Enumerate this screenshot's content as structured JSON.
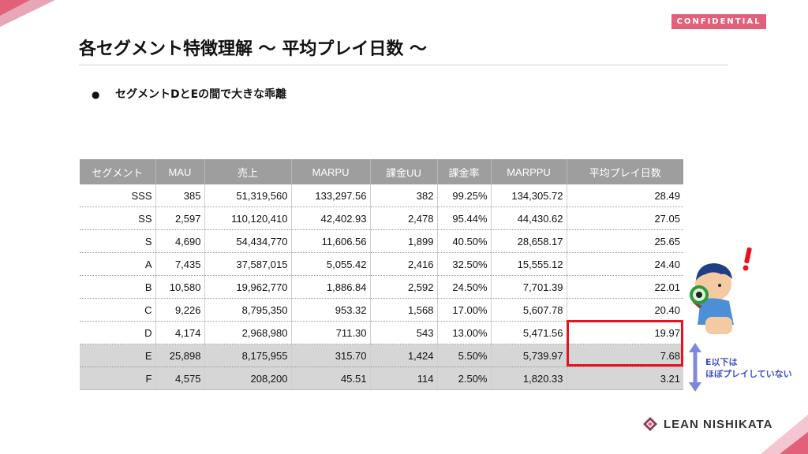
{
  "badge": "CONFIDENTIAL",
  "title": "各セグメント特徴理解 〜 平均プレイ日数 〜",
  "bullet": {
    "marker": "●",
    "text": "セグメントDとEの間で大きな乖離"
  },
  "table": {
    "headers": [
      "セグメント",
      "MAU",
      "売上",
      "MARPU",
      "課金UU",
      "課金率",
      "MARPPU",
      "平均プレイ日数"
    ],
    "rows": [
      [
        "SSS",
        "385",
        "51,319,560",
        "133,297.56",
        "382",
        "99.25%",
        "134,305.72",
        "28.49"
      ],
      [
        "SS",
        "2,597",
        "110,120,410",
        "42,402.93",
        "2,478",
        "95.44%",
        "44,430.62",
        "27.05"
      ],
      [
        "S",
        "4,690",
        "54,434,770",
        "11,606.56",
        "1,899",
        "40.50%",
        "28,658.17",
        "25.65"
      ],
      [
        "A",
        "7,435",
        "37,587,015",
        "5,055.42",
        "2,416",
        "32.50%",
        "15,555.12",
        "24.40"
      ],
      [
        "B",
        "10,580",
        "19,962,770",
        "1,886.84",
        "2,592",
        "24.50%",
        "7,701.39",
        "22.01"
      ],
      [
        "C",
        "9,226",
        "8,795,350",
        "953.32",
        "1,568",
        "17.00%",
        "5,607.78",
        "20.40"
      ],
      [
        "D",
        "4,174",
        "2,968,980",
        "711.30",
        "543",
        "13.00%",
        "5,471.56",
        "19.97"
      ],
      [
        "E",
        "25,898",
        "8,175,955",
        "315.70",
        "1,424",
        "5.50%",
        "5,739.97",
        "7.68"
      ],
      [
        "F",
        "4,575",
        "208,200",
        "45.51",
        "114",
        "2.50%",
        "1,820.33",
        "3.21"
      ]
    ],
    "shaded_rows": [
      7,
      8
    ]
  },
  "note": {
    "line1": "E以下は",
    "line2": "ほぼプレイしていない"
  },
  "logo": {
    "text": "LEAN NISHIKATA"
  },
  "colors": {
    "accent_pink": "#e2607a",
    "highlight_red": "#e8121f",
    "note_blue": "#3d4fc7",
    "header_gray": "#9e9e9e",
    "shade_gray": "#d6d6d6"
  },
  "icons": [
    "exclamation-icon",
    "magnifier-boy-illustration",
    "double-arrow-icon",
    "logo-mark-icon"
  ]
}
